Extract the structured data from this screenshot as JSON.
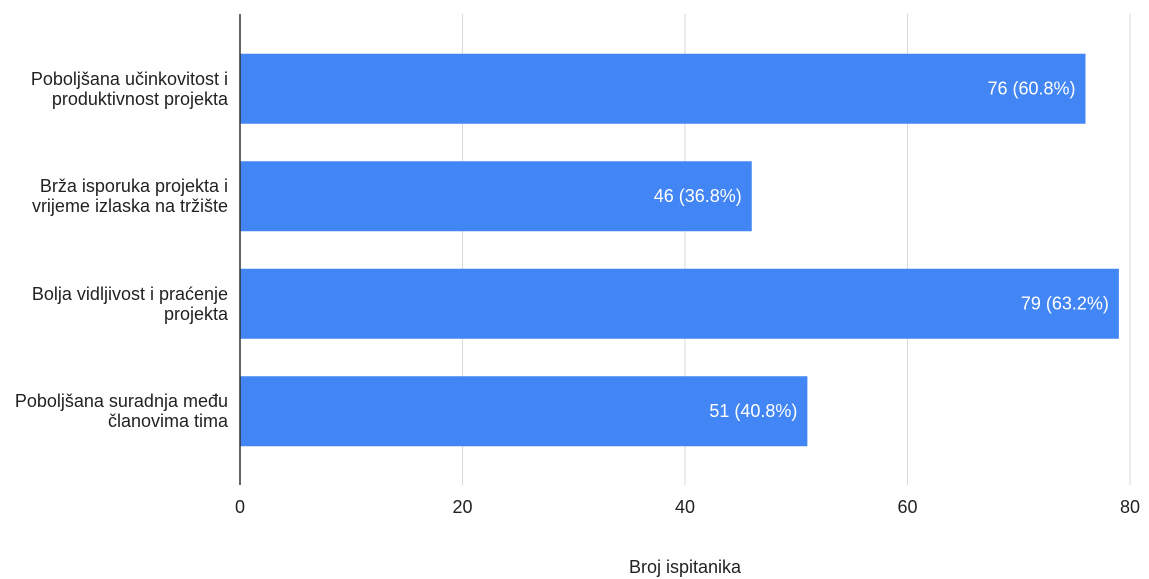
{
  "chart_data": {
    "type": "bar",
    "orientation": "horizontal",
    "categories": [
      "Poboljšana učinkovitost i produktivnost projekta",
      "Brža isporuka projekta i vrijeme izlaska na tržište",
      "Bolja vidljivost i praćenje projekta",
      "Poboljšana suradnja među članovima tima"
    ],
    "values": [
      76,
      46,
      79,
      51
    ],
    "value_labels": [
      "76 (60.8%)",
      "46 (36.8%)",
      "79 (63.2%)",
      "51 (40.8%)"
    ],
    "color": "#4285f4",
    "xlabel": "Broj ispitanika",
    "xlim": [
      0,
      80
    ],
    "xticks": [
      0,
      20,
      40,
      60,
      80
    ],
    "grid": true
  }
}
